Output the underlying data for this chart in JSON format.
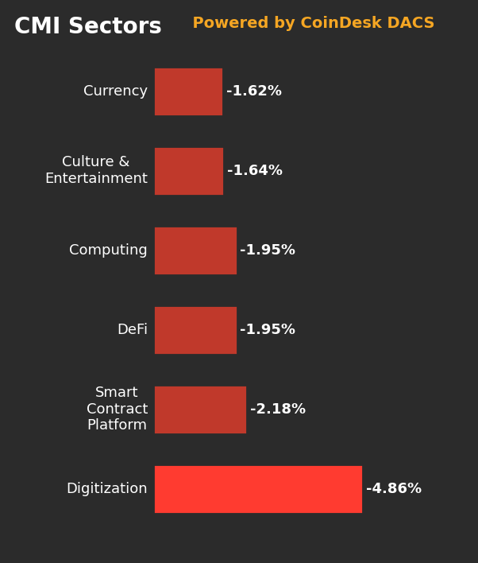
{
  "title_white": "CMI Sectors",
  "title_orange": "  Powered by CoinDesk DACS",
  "background_color": "#2b2b2b",
  "bar_color_dark": "#c0392b",
  "bar_color_bright": "#ff3b30",
  "categories": [
    "Currency",
    "Culture &\nEntertainment",
    "Computing",
    "DeFi",
    "Smart\nContract\nPlatform",
    "Digitization"
  ],
  "values": [
    1.62,
    1.64,
    1.95,
    1.95,
    2.18,
    4.86
  ],
  "labels": [
    "-1.62%",
    "-1.64%",
    "-1.95%",
    "-1.95%",
    "-2.18%",
    "-4.86%"
  ],
  "text_color": "#ffffff",
  "label_color": "#ffffff",
  "title_fontsize": 20,
  "subtitle_fontsize": 14,
  "label_fontsize": 13,
  "tick_fontsize": 13,
  "title_color_white": "#ffffff",
  "title_color_orange": "#f5a623"
}
